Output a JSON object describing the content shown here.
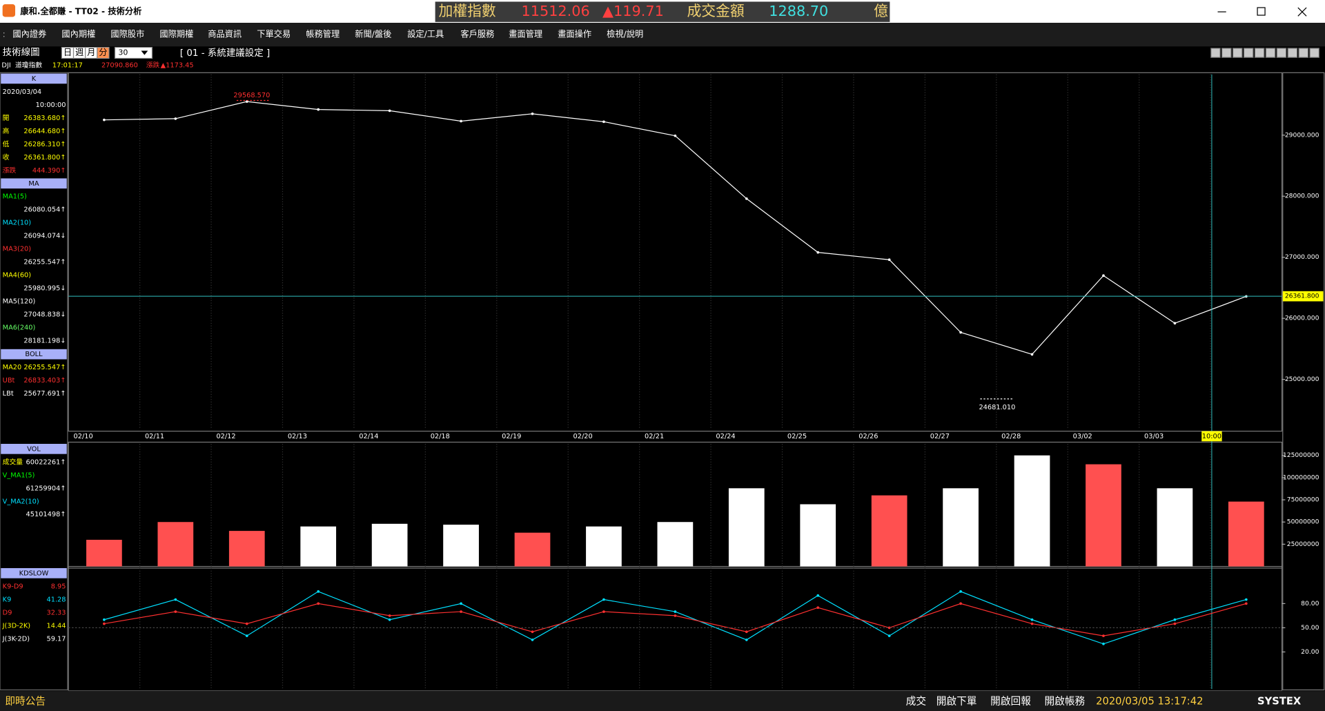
{
  "window": {
    "title": "康和.全都賺 - TT02 - 技術分析"
  },
  "ticker": {
    "name": "加權指數",
    "index": "11512.06",
    "change": "▲119.71",
    "turnover_label": "成交金額",
    "turnover": "1288.70",
    "unit": "億"
  },
  "menu": [
    "國內證券",
    "國內期權",
    "國際股市",
    "國際期權",
    "商品資訊",
    "下單交易",
    "帳務管理",
    "新聞/盤後",
    "設定/工具",
    "客戶服務",
    "畫面管理",
    "畫面操作",
    "檢視/說明"
  ],
  "toolbar": {
    "label": "技術線圖",
    "periods": [
      "日",
      "週",
      "月",
      "分"
    ],
    "interval": "30",
    "setting": "[ 01 - 系統建議設定 ]"
  },
  "symbol": {
    "code": "DJI",
    "name": "道瓊指數",
    "time": "17:01:17",
    "price": "27090.860",
    "change_label": "漲跌",
    "change": "▲1173.45"
  },
  "side_panel": [
    {
      "header": "K",
      "rows": [
        {
          "value": "2020/03/04",
          "color": "#ffffff"
        },
        {
          "value": "10:00:00",
          "color": "#ffffff"
        },
        {
          "label": "開",
          "value": "26383.680↑",
          "color": "#ffff00"
        },
        {
          "label": "高",
          "value": "26644.680↑",
          "color": "#ffff00"
        },
        {
          "label": "低",
          "value": "26286.310↑",
          "color": "#ffff00"
        },
        {
          "label": "收",
          "value": "26361.800↑",
          "color": "#ffff00"
        },
        {
          "label": "漲跌",
          "value": "444.390↑",
          "color": "#ff3030"
        }
      ]
    },
    {
      "header": "MA",
      "rows": [
        {
          "label": "MA1(5)",
          "value": "26080.054↑",
          "color": "#00ff00"
        },
        {
          "label": "MA2(10)",
          "value": "26094.074↓",
          "color": "#00e0ff"
        },
        {
          "label": "MA3(20)",
          "value": "26255.547↑",
          "color": "#ff3030"
        },
        {
          "label": "MA4(60)",
          "value": "25980.995↓",
          "color": "#ffff00"
        },
        {
          "label": "MA5(120)",
          "value": "27048.838↓",
          "color": "#ffffff"
        },
        {
          "label": "MA6(240)",
          "value": "28181.198↓",
          "color": "#66ff66"
        }
      ]
    },
    {
      "header": "BOLL",
      "rows": [
        {
          "label": "MA20",
          "value": "26255.547↑",
          "color": "#ffff00"
        },
        {
          "label": "UBt",
          "value": "26833.403↑",
          "color": "#ff3030"
        },
        {
          "label": "LBt",
          "value": "25677.691↑",
          "color": "#ffffff"
        }
      ]
    },
    {
      "header": "VOL",
      "rows": [
        {
          "label": "成交量",
          "value": "60022261↑",
          "color": "#ffff00"
        },
        {
          "label": "V_MA1(5)",
          "value": "61259904↑",
          "color": "#00ff00"
        },
        {
          "label": "V_MA2(10)",
          "value": "45101498↑",
          "color": "#00e0ff"
        }
      ]
    },
    {
      "header": "KDSLOW",
      "rows": [
        {
          "label": "K9-D9",
          "value": "8.95",
          "color": "#ff3030"
        },
        {
          "label": "K9",
          "value": "41.28",
          "color": "#00e0ff"
        },
        {
          "label": "D9",
          "value": "32.33",
          "color": "#ff3030"
        },
        {
          "label": "J(3D-2K)",
          "value": "14.44",
          "color": "#ffff00"
        },
        {
          "label": "J(3K-2D)",
          "value": "59.17",
          "color": "#ffffff"
        }
      ]
    }
  ],
  "chart_data": [
    {
      "type": "line",
      "categories": [
        "02/10",
        "02/11",
        "02/12",
        "02/13",
        "02/14",
        "02/18",
        "02/19",
        "02/20",
        "02/21",
        "02/24",
        "02/25",
        "02/26",
        "02/27",
        "02/28",
        "03/02",
        "03/03",
        null
      ],
      "values": [
        29250,
        29270,
        29550,
        29420,
        29400,
        29230,
        29350,
        29220,
        28990,
        27960,
        27080,
        26960,
        25770,
        25410,
        26700,
        25920,
        26360
      ],
      "color": "#ffffff",
      "ylim": [
        24180,
        29995
      ],
      "yticks": [
        {
          "value": 25000,
          "label": "25000.000"
        },
        {
          "value": 26000,
          "label": "26000.000"
        },
        {
          "value": 27000,
          "label": "27000.000"
        },
        {
          "value": 28000,
          "label": "28000.000"
        },
        {
          "value": 29000,
          "label": "29000.000"
        }
      ],
      "high": {
        "value": 29568.57,
        "label": "29568.570"
      },
      "low": {
        "value": 24681.01,
        "label": "24681.010"
      },
      "last": {
        "value": 26361.8,
        "label": "26361.800"
      },
      "cursor": "10:00"
    },
    {
      "type": "bar",
      "values": [
        30000000,
        50000000,
        40000000,
        45000000,
        48000000,
        47000000,
        38000000,
        45000000,
        50000000,
        88000000,
        70000000,
        80000000,
        88000000,
        125000000,
        115000000,
        88000000,
        73000000
      ],
      "colors": [
        "#ff5050",
        "#ff5050",
        "#ff5050",
        "#ffffff",
        "#ffffff",
        "#ffffff",
        "#ff5050",
        "#ffffff",
        "#ffffff",
        "#ffffff",
        "#ffffff",
        "#ff5050",
        "#ffffff",
        "#ffffff",
        "#ff5050",
        "#ffffff",
        "#ff5050"
      ],
      "ylim": [
        0,
        138000000
      ],
      "yticks": [
        25000000,
        50000000,
        75000000,
        100000000,
        125000000
      ]
    },
    {
      "type": "line",
      "series": [
        {
          "color": "#00e0ff",
          "values": [
            60,
            85,
            40,
            95,
            60,
            80,
            35,
            85,
            70,
            35,
            90,
            40,
            95,
            60,
            30,
            60,
            85
          ]
        },
        {
          "color": "#ff3030",
          "values": [
            55,
            70,
            55,
            80,
            65,
            70,
            45,
            70,
            65,
            45,
            75,
            50,
            80,
            55,
            40,
            55,
            80
          ]
        }
      ],
      "ylim": [
        -26,
        124
      ],
      "yticks": [
        {
          "value": 20,
          "label": "20.00"
        },
        {
          "value": 50,
          "label": "50.00"
        },
        {
          "value": 80,
          "label": "80.00"
        }
      ]
    }
  ],
  "status": {
    "notice": "即時公告",
    "buttons": [
      "成交",
      "開啟下單",
      "開啟回報",
      "開啟帳務"
    ],
    "datetime": "2020/03/05 13:17:42",
    "brand": "SYSTEX"
  }
}
